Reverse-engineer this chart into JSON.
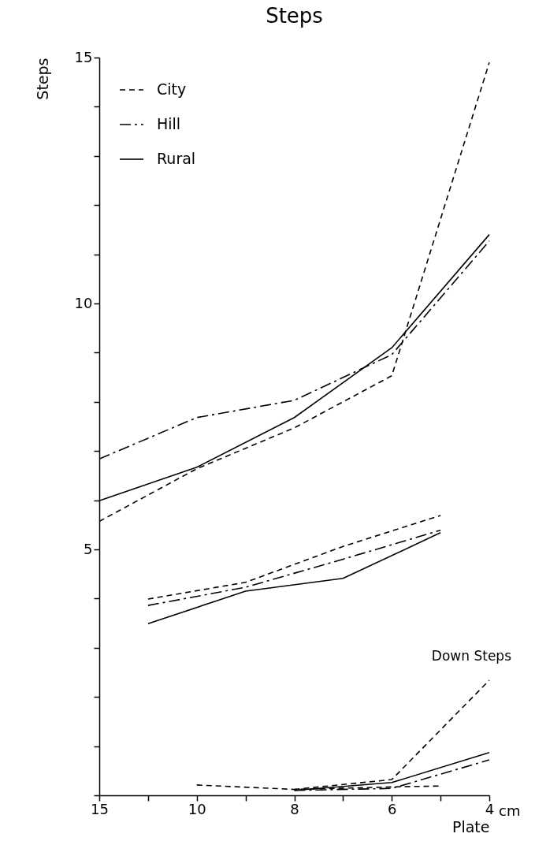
{
  "chart_data": {
    "type": "line",
    "title": "Steps",
    "xlabel": "Plate",
    "ylabel": "Steps",
    "categories": [
      "15",
      null,
      "10",
      null,
      "8",
      null,
      "6",
      null,
      "4"
    ],
    "series": [
      {
        "name": "City",
        "color": "#000000",
        "line_style": "dashed",
        "values": [
          5.57,
          null,
          6.64,
          null,
          7.47,
          null,
          8.53,
          null,
          14.9
        ]
      },
      {
        "name": "Hill",
        "color": "#000000",
        "line_style": "dashdot",
        "values": [
          6.84,
          null,
          7.68,
          null,
          8.03,
          null,
          8.96,
          null,
          11.27
        ]
      },
      {
        "name": "Rural",
        "color": "#000000",
        "line_style": "solid",
        "values": [
          5.99,
          null,
          6.67,
          null,
          7.68,
          null,
          9.1,
          null,
          11.4
        ]
      },
      {
        "color": "#000000",
        "line_style": "dashed",
        "values": [
          null,
          3.99,
          null,
          4.33,
          null,
          5.06,
          null,
          5.69,
          null
        ]
      },
      {
        "color": "#000000",
        "line_style": "dashdot",
        "values": [
          null,
          3.86,
          null,
          4.23,
          null,
          4.8,
          null,
          5.39,
          null
        ]
      },
      {
        "color": "#000000",
        "line_style": "solid",
        "values": [
          null,
          3.49,
          null,
          4.15,
          null,
          4.41,
          null,
          5.34,
          null
        ]
      },
      {
        "color": "#000000",
        "line_style": "dashed",
        "values": [
          null,
          null,
          0.21,
          null,
          0.12,
          null,
          0.17,
          0.19,
          null
        ]
      },
      {
        "color": "#000000",
        "line_style": "dashed",
        "values": [
          null,
          null,
          null,
          null,
          0.12,
          null,
          0.32,
          null,
          2.34
        ]
      },
      {
        "color": "#000000",
        "line_style": "dashdot",
        "values": [
          null,
          null,
          null,
          null,
          0.1,
          null,
          0.14,
          null,
          0.72
        ]
      },
      {
        "color": "#000000",
        "line_style": "solid",
        "values": [
          null,
          null,
          null,
          null,
          0.1,
          null,
          0.26,
          null,
          0.87
        ]
      }
    ],
    "ylim": [
      0,
      15
    ],
    "yticks": [
      {
        "value": 0,
        "label": null
      },
      {
        "value": 1,
        "label": null
      },
      {
        "value": 2,
        "label": null
      },
      {
        "value": 3,
        "label": null
      },
      {
        "value": 4,
        "label": null
      },
      5,
      {
        "value": 6,
        "label": null
      },
      {
        "value": 7,
        "label": null
      },
      {
        "value": 8,
        "label": null
      },
      {
        "value": 9,
        "label": null
      },
      10,
      {
        "value": 11,
        "label": null
      },
      {
        "value": 12,
        "label": null
      },
      {
        "value": 13,
        "label": null
      },
      {
        "value": 14,
        "label": null
      },
      15
    ],
    "grid": false,
    "legend": "top left",
    "annotations": [
      "Down Steps",
      "cm"
    ]
  }
}
